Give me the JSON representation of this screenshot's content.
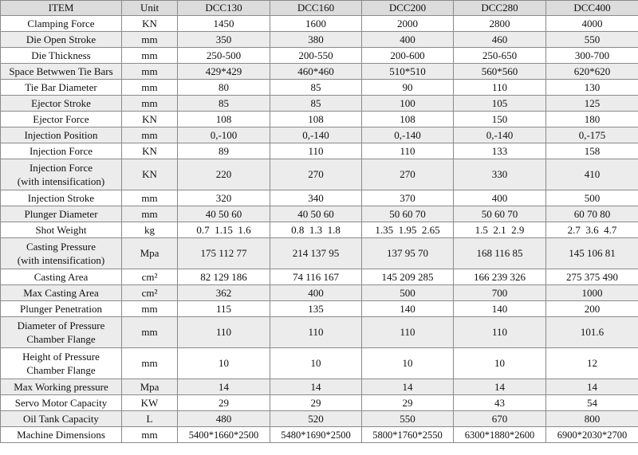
{
  "headers": [
    "ITEM",
    "Unit",
    "DCC130",
    "DCC160",
    "DCC200",
    "DCC280",
    "DCC400"
  ],
  "rows": [
    {
      "item": [
        "Clamping Force"
      ],
      "unit": "KN",
      "values": [
        "1450",
        "1600",
        "2000",
        "2800",
        "4000"
      ]
    },
    {
      "item": [
        "Die Open Stroke"
      ],
      "unit": "mm",
      "values": [
        "350",
        "380",
        "400",
        "460",
        "550"
      ]
    },
    {
      "item": [
        "Die Thickness"
      ],
      "unit": "mm",
      "values": [
        "250-500",
        "200-550",
        "200-600",
        "250-650",
        "300-700"
      ]
    },
    {
      "item": [
        "Space Betwwen Tie Bars"
      ],
      "unit": "mm",
      "values": [
        "429*429",
        "460*460",
        "510*510",
        "560*560",
        "620*620"
      ]
    },
    {
      "item": [
        "Tie Bar Diameter"
      ],
      "unit": "mm",
      "values": [
        "80",
        "85",
        "90",
        "110",
        "130"
      ]
    },
    {
      "item": [
        "Ejector Stroke"
      ],
      "unit": "mm",
      "values": [
        "85",
        "85",
        "100",
        "105",
        "125"
      ]
    },
    {
      "item": [
        "Ejector Force"
      ],
      "unit": "KN",
      "values": [
        "108",
        "108",
        "108",
        "150",
        "180"
      ]
    },
    {
      "item": [
        "Injection Position"
      ],
      "unit": "mm",
      "values": [
        "0,-100",
        "0,-140",
        "0,-140",
        "0,-140",
        "0,-175"
      ]
    },
    {
      "item": [
        "Injection Force"
      ],
      "unit": "KN",
      "values": [
        "89",
        "110",
        "110",
        "133",
        "158"
      ]
    },
    {
      "item": [
        "Injection Force",
        "(with intensification)"
      ],
      "unit": "KN",
      "values": [
        "220",
        "270",
        "270",
        "330",
        "410"
      ]
    },
    {
      "item": [
        "Injection Stroke"
      ],
      "unit": "mm",
      "values": [
        "320",
        "340",
        "370",
        "400",
        "500"
      ]
    },
    {
      "item": [
        "Plunger Diameter"
      ],
      "unit": "mm",
      "values": [
        "40 50 60",
        "40 50 60",
        "50 60 70",
        "50 60 70",
        "60 70 80"
      ]
    },
    {
      "item": [
        "Shot Weight"
      ],
      "unit": "kg",
      "values": [
        "0.7  1.15  1.6",
        "0.8  1.3  1.8",
        "1.35  1.95  2.65",
        "1.5  2.1  2.9",
        "2.7  3.6  4.7"
      ]
    },
    {
      "item": [
        "Casting Pressure",
        "(with intensification)"
      ],
      "unit": "Mpa",
      "values": [
        "175 112 77",
        "214 137 95",
        "137 95 70",
        "168 116 85",
        "145 106 81"
      ]
    },
    {
      "item": [
        "Casting Area"
      ],
      "unit": "cm²",
      "values": [
        "82 129 186",
        "74 116 167",
        "145 209 285",
        "166 239 326",
        "275 375 490"
      ]
    },
    {
      "item": [
        "Max Casting Area"
      ],
      "unit": "cm²",
      "values": [
        "362",
        "400",
        "500",
        "700",
        "1000"
      ]
    },
    {
      "item": [
        "Plunger Penetration"
      ],
      "unit": "mm",
      "values": [
        "115",
        "135",
        "140",
        "140",
        "200"
      ]
    },
    {
      "item": [
        "Diameter of Pressure",
        "Chamber Flange"
      ],
      "unit": "mm",
      "values": [
        "110",
        "110",
        "110",
        "110",
        "101.6"
      ]
    },
    {
      "item": [
        "Height of Pressure",
        "Chamber Flange"
      ],
      "unit": "mm",
      "values": [
        "10",
        "10",
        "10",
        "10",
        "12"
      ]
    },
    {
      "item": [
        "Max Working pressure"
      ],
      "unit": "Mpa",
      "values": [
        "14",
        "14",
        "14",
        "14",
        "14"
      ]
    },
    {
      "item": [
        "Servo Motor Capacity"
      ],
      "unit": "KW",
      "values": [
        "29",
        "29",
        "29",
        "43",
        "54"
      ]
    },
    {
      "item": [
        "Oil Tank Capacity"
      ],
      "unit": "L",
      "values": [
        "480",
        "520",
        "550",
        "670",
        "800"
      ]
    },
    {
      "item": [
        "Machine Dimensions"
      ],
      "unit": "mm",
      "values": [
        "5400*1660*2500",
        "5480*1690*2500",
        "5800*1760*2550",
        "6300*1880*2600",
        "6900*2030*2700"
      ]
    }
  ]
}
